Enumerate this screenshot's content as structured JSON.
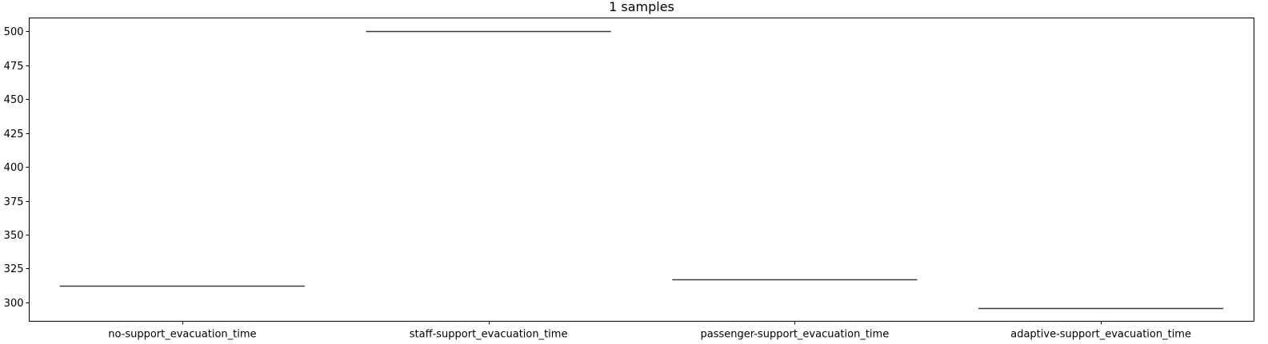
{
  "chart_data": {
    "type": "box",
    "title": "1 samples",
    "xlabel": "",
    "ylabel": "",
    "categories": [
      "no-support_evacuation_time",
      "staff-support_evacuation_time",
      "passenger-support_evacuation_time",
      "adaptive-support_evacuation_time"
    ],
    "values": [
      312,
      500,
      317,
      296
    ],
    "ylim": [
      286,
      510
    ],
    "yticks": [
      300,
      325,
      350,
      375,
      400,
      425,
      450,
      475,
      500
    ],
    "grid": false,
    "legend": "none",
    "colors": {
      "axis": "#000000",
      "line": "#3a3a3a",
      "background": "#ffffff"
    }
  }
}
